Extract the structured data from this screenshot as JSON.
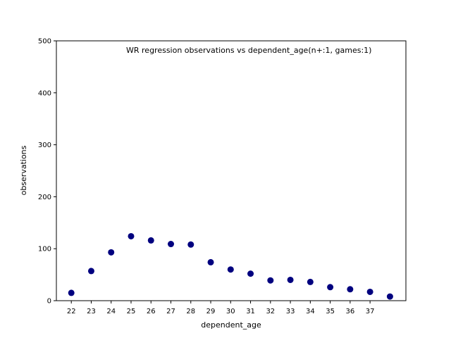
{
  "chart_data": {
    "type": "scatter",
    "annotation": "WR regression observations vs dependent_age(n+:1, games:1)",
    "xlabel": "dependent_age",
    "ylabel": "observations",
    "x": [
      22,
      23,
      24,
      25,
      26,
      27,
      28,
      29,
      30,
      31,
      32,
      33,
      34,
      35,
      36,
      37,
      38
    ],
    "y": [
      15,
      57,
      93,
      124,
      116,
      109,
      108,
      74,
      60,
      52,
      39,
      40,
      36,
      26,
      22,
      17,
      8
    ],
    "x_ticks": [
      22,
      23,
      24,
      25,
      26,
      27,
      28,
      29,
      30,
      31,
      32,
      33,
      34,
      35,
      36,
      37
    ],
    "xlim": [
      21.25,
      38.8
    ],
    "ylim": [
      0,
      500
    ],
    "y_ticks": [
      0,
      100,
      200,
      300,
      400,
      500
    ],
    "grid": false,
    "marker_color": "#00007f"
  }
}
